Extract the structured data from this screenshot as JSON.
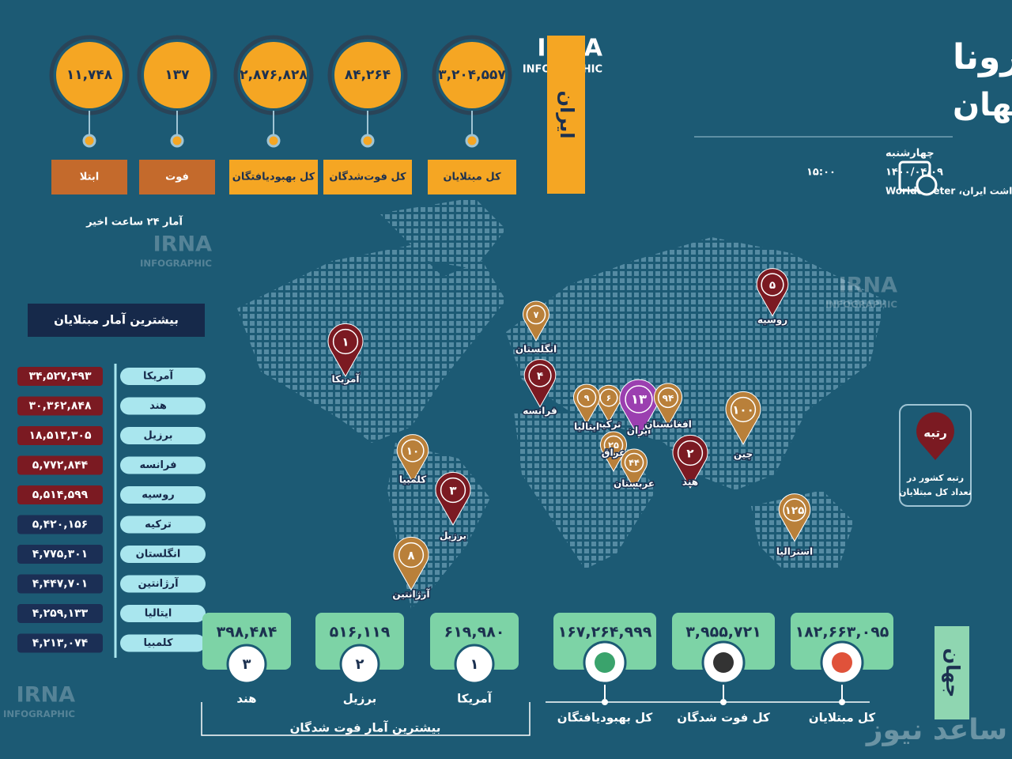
{
  "header": {
    "title_line1": "آمار کرونا",
    "title_line2": "در ایران و جهان",
    "brand": "IRNA",
    "brand_sub": "INFOGRAPHIC",
    "day": "چهارشنبه",
    "date": "۱۴۰۰/۰۴/۰۹",
    "time": "۱۵:۰۰",
    "source": "منبع: وزارت بهداشت ایران، Worldometer"
  },
  "iran": {
    "label": "ایران",
    "stats": [
      {
        "value": "۳,۲۰۴,۵۵۷",
        "label": "کل مبتلایان"
      },
      {
        "value": "۸۴,۲۶۴",
        "label": "کل فوت‌شدگان"
      },
      {
        "value": "۲,۸۷۶,۸۲۸",
        "label": "کل بهبودیافتگان"
      },
      {
        "value": "۱۳۷",
        "label": "فوت"
      },
      {
        "value": "۱۱,۷۴۸",
        "label": "ابتلا"
      }
    ],
    "note": "آمار ۲۴ ساعت اخیر"
  },
  "top_infected": {
    "title": "بیشترین آمار مبتلایان",
    "rows": [
      {
        "country": "آمریکا",
        "value": "۳۴,۵۲۷,۴۹۳"
      },
      {
        "country": "هند",
        "value": "۳۰,۳۶۲,۸۴۸"
      },
      {
        "country": "برزیل",
        "value": "۱۸,۵۱۳,۳۰۵"
      },
      {
        "country": "فرانسه",
        "value": "۵,۷۷۲,۸۴۴"
      },
      {
        "country": "روسیه",
        "value": "۵,۵۱۴,۵۹۹"
      },
      {
        "country": "ترکیه",
        "value": "۵,۴۲۰,۱۵۶"
      },
      {
        "country": "انگلستان",
        "value": "۴,۷۷۵,۳۰۱"
      },
      {
        "country": "آرژانتین",
        "value": "۴,۴۴۷,۷۰۱"
      },
      {
        "country": "ایتالیا",
        "value": "۴,۲۵۹,۱۳۳"
      },
      {
        "country": "کلمبیا",
        "value": "۴,۲۱۳,۰۷۴"
      }
    ]
  },
  "map_markers": [
    {
      "rank": "۱",
      "label": "آمریکا",
      "color": "#7b1a22"
    },
    {
      "rank": "۵",
      "label": "روسیه",
      "color": "#7b1a22"
    },
    {
      "rank": "۷",
      "label": "انگلستان",
      "color": "#b9803a"
    },
    {
      "rank": "۴",
      "label": "فرانسه",
      "color": "#7b1a22"
    },
    {
      "rank": "۶",
      "label": "ترکیه",
      "color": "#b9803a"
    },
    {
      "rank": "۹",
      "label": "ایتالیا",
      "color": "#b9803a"
    },
    {
      "rank": "۱۳",
      "label": "ایران",
      "color": "#9b3fb0"
    },
    {
      "rank": "۹۴",
      "label": "افغانستان",
      "color": "#b9803a"
    },
    {
      "rank": "۱۰۰",
      "label": "چین",
      "color": "#b9803a"
    },
    {
      "rank": "۲۵",
      "label": "عراق",
      "color": "#b9803a"
    },
    {
      "rank": "۴۴",
      "label": "عربستان",
      "color": "#b9803a"
    },
    {
      "rank": "۲",
      "label": "هند",
      "color": "#7b1a22"
    },
    {
      "rank": "۱۰",
      "label": "کلمبیا",
      "color": "#b9803a"
    },
    {
      "rank": "۳",
      "label": "برزیل",
      "color": "#7b1a22"
    },
    {
      "rank": "۸",
      "label": "آرژانتین",
      "color": "#b9803a"
    },
    {
      "rank": "۱۲۵",
      "label": "استرالیا",
      "color": "#b9803a"
    }
  ],
  "legend": {
    "title": "رتبه",
    "text_line1": "رتبه کشور در",
    "text_line2": "تعداد کل مبتلایان"
  },
  "world": {
    "label": "جهان",
    "stats": [
      {
        "value": "۱۸۲,۶۶۳,۰۹۵",
        "label": "کل مبتلایان"
      },
      {
        "value": "۳,۹۵۵,۷۲۱",
        "label": "کل فوت شدگان"
      },
      {
        "value": "۱۶۷,۲۶۴,۹۹۹",
        "label": "کل بهبودیافتگان"
      }
    ]
  },
  "top_deaths": {
    "title": "بیشترین آمار فوت شدگان",
    "rows": [
      {
        "rank": "۱",
        "country": "آمریکا",
        "value": "۶۱۹,۹۸۰"
      },
      {
        "rank": "۲",
        "country": "برزیل",
        "value": "۵۱۶,۱۱۹"
      },
      {
        "rank": "۳",
        "country": "هند",
        "value": "۳۹۸,۴۸۴"
      }
    ]
  },
  "watermark": "ساعد نیوز"
}
